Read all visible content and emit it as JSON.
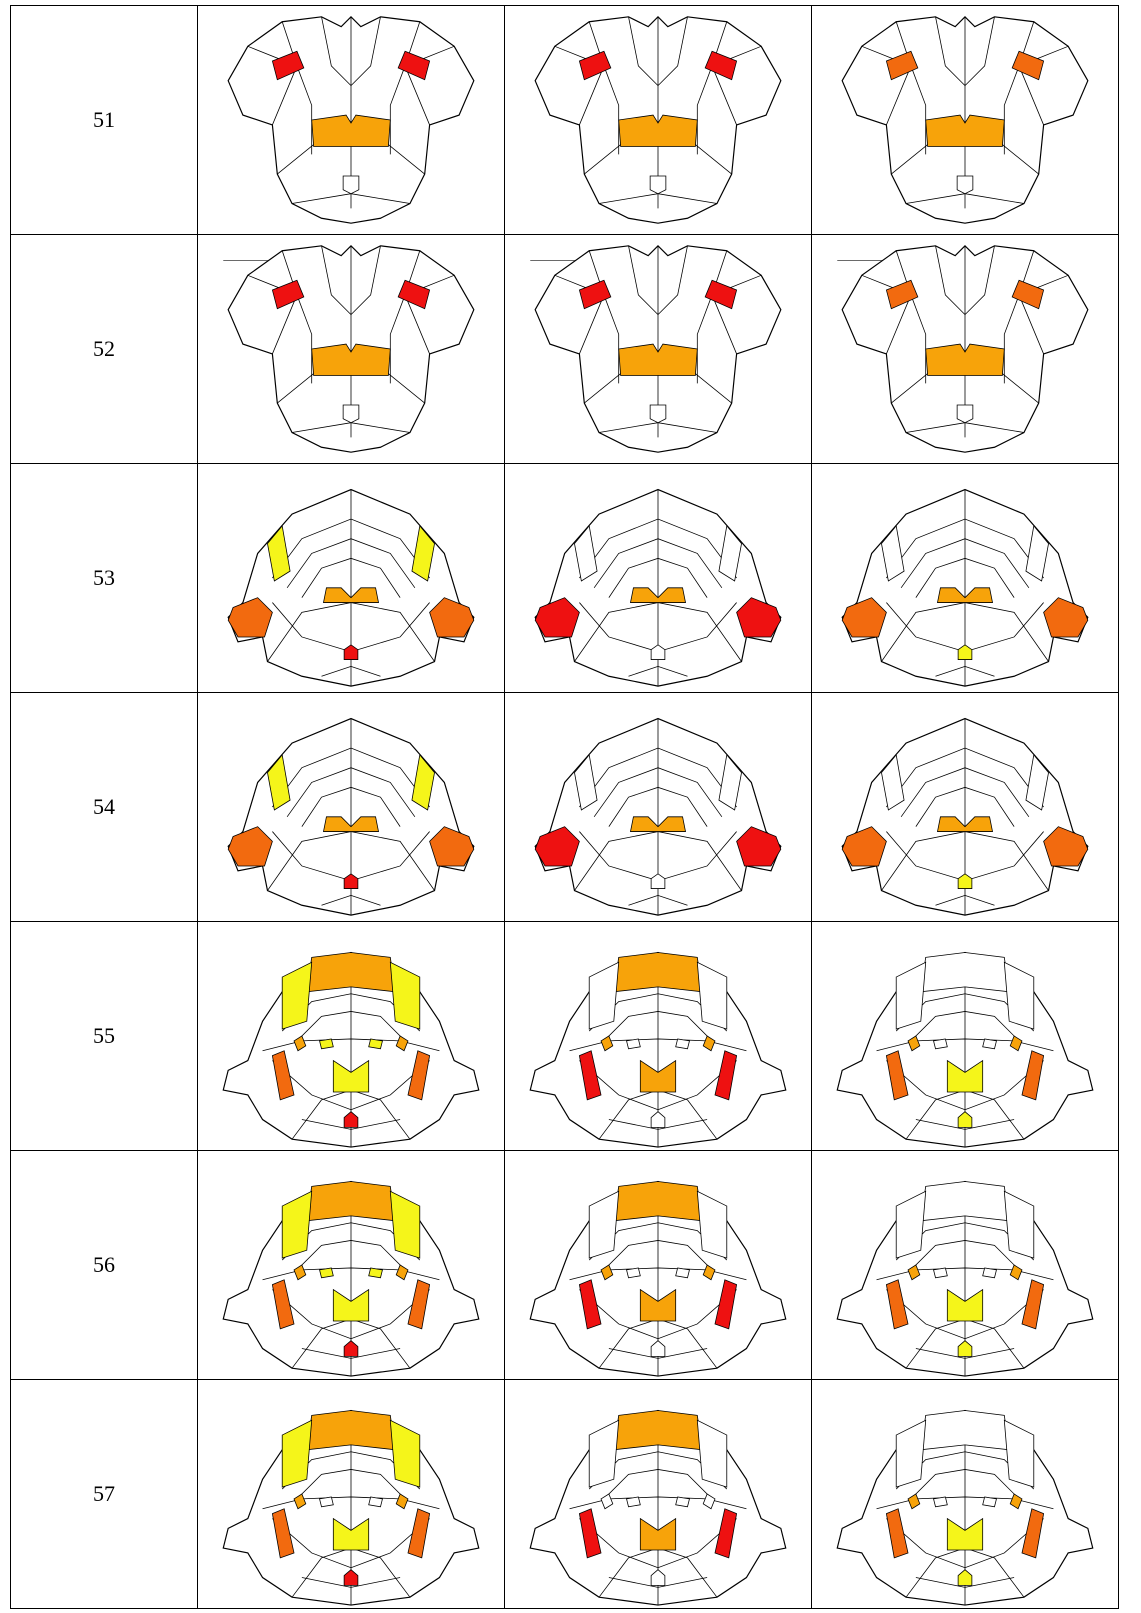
{
  "table": {
    "rows": [
      {
        "label": "51"
      },
      {
        "label": "52"
      },
      {
        "label": "53"
      },
      {
        "label": "54"
      },
      {
        "label": "55"
      },
      {
        "label": "56"
      },
      {
        "label": "57"
      }
    ]
  }
}
